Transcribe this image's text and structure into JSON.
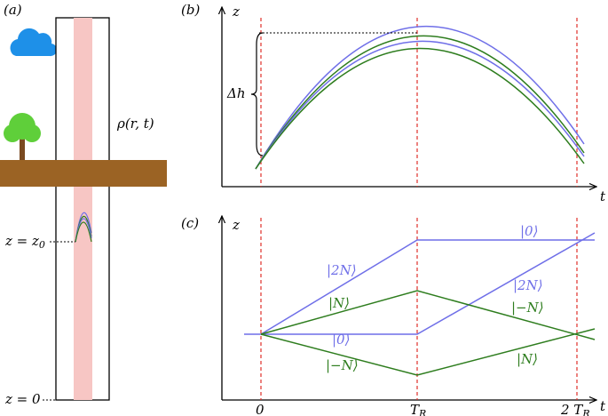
{
  "panel_a": {
    "label": "(a)",
    "density": "ρ(r, t)",
    "z0_label": {
      "main": "z = z",
      "sub": "0"
    },
    "z_zero_label": "z = 0"
  },
  "panel_b": {
    "label": "(b)",
    "y_axis": "z",
    "x_axis": "t",
    "height_label": "Δh"
  },
  "panel_c": {
    "label": "(c)",
    "y_axis": "z",
    "x_axis": "t",
    "ticks": [
      {
        "main": "0",
        "sub": ""
      },
      {
        "main": "T",
        "sub": "R"
      },
      {
        "main": "2 T",
        "sub": "R"
      }
    ],
    "state_labels": [
      "|2N⟩",
      "|N⟩",
      "|0⟩",
      "|−N⟩",
      "|0⟩",
      "|2N⟩",
      "|−N⟩",
      "|N⟩"
    ]
  }
}
